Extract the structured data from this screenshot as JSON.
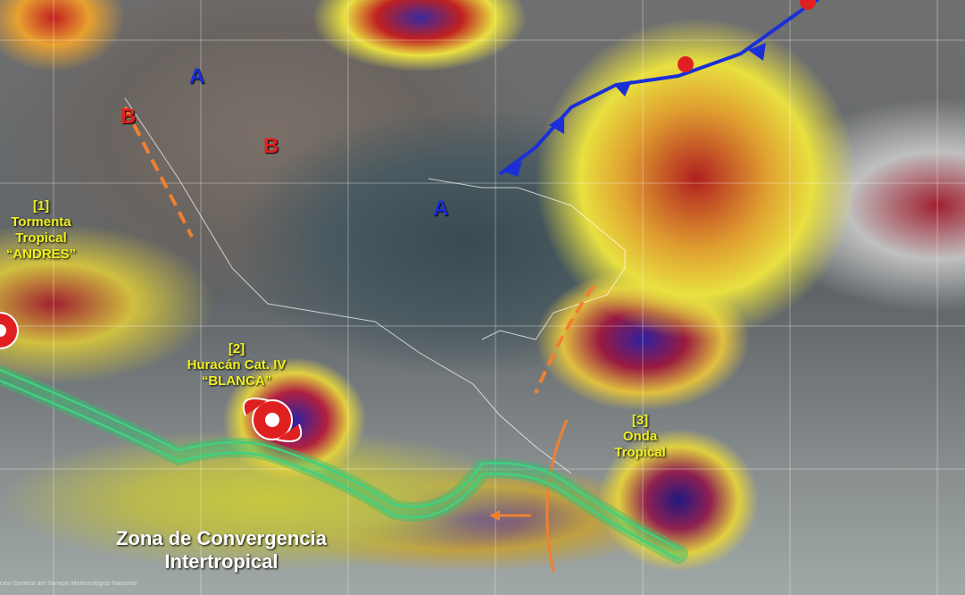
{
  "systems": {
    "storm1": {
      "number": "[1]",
      "line1": "Tormenta",
      "line2": "Tropical",
      "name": "“ANDRES”"
    },
    "storm2": {
      "number": "[2]",
      "line1": "Huracán Cat. IV",
      "name": "“BLANCA”"
    },
    "wave3": {
      "number": "[3]",
      "line1": "Onda",
      "line2": "Tropical"
    },
    "itcz": {
      "line1": "Zona de Convergencia",
      "line2": "Intertropical"
    }
  },
  "pressure": {
    "high": "A",
    "low": "B"
  },
  "watermark": "ción General del Servicio Meteorológico Nacional",
  "colors": {
    "cold_front": "#1a2fd8",
    "warm_front": "#e02020",
    "trough": "#f08030",
    "itcz": "#30c070",
    "high": "#1a2fd8",
    "low": "#e02020",
    "label": "#f0f020"
  }
}
